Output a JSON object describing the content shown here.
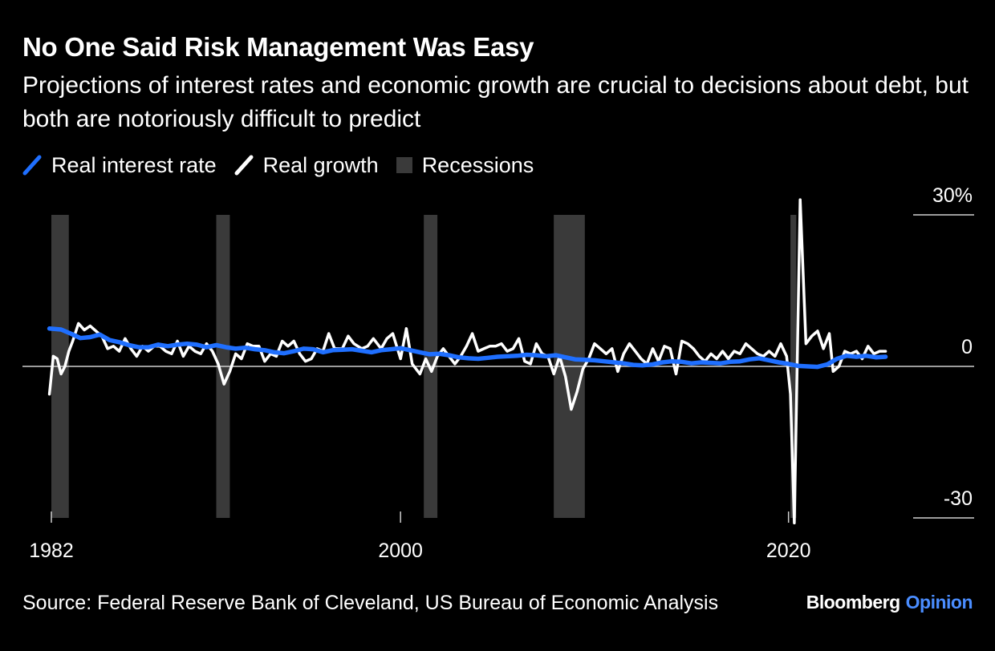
{
  "title": "No One Said Risk Management Was Easy",
  "subtitle": "Projections of interest rates and economic growth are crucial to decisions about debt, but both are notoriously difficult to predict",
  "legend": [
    {
      "label": "Real interest rate",
      "color": "#1f6fff",
      "icon": "slash-line-icon"
    },
    {
      "label": "Real growth",
      "color": "#ffffff",
      "icon": "slash-line-icon"
    },
    {
      "label": "Recessions",
      "color": "#3a3a3a",
      "icon": "square-icon"
    }
  ],
  "source": "Source: Federal Reserve Bank of Cleveland, US Bureau of Economic Analysis",
  "brand": {
    "name": "Bloomberg",
    "section": "Opinion"
  },
  "colors": {
    "background": "#000000",
    "interest": "#1f6fff",
    "growth": "#ffffff",
    "recession": "#3a3a3a"
  },
  "chart_data": {
    "type": "line",
    "xlim": [
      1982,
      2027.5
    ],
    "ylim": [
      -30,
      30
    ],
    "x_ticks": [
      {
        "value": 1982,
        "label": "1982"
      },
      {
        "value": 2000,
        "label": "2000"
      },
      {
        "value": 2020,
        "label": "2020"
      }
    ],
    "y_ticks": [
      {
        "value": 30,
        "label": "30%"
      },
      {
        "value": 0,
        "label": "0"
      },
      {
        "value": -30,
        "label": "-30"
      }
    ],
    "recessions": [
      [
        1982.0,
        1982.9
      ],
      [
        1990.5,
        1991.2
      ],
      [
        2001.2,
        2001.9
      ],
      [
        2007.9,
        2009.5
      ],
      [
        2020.1,
        2020.4
      ]
    ],
    "series": [
      {
        "name": "Real interest rate",
        "color": "#1f6fff",
        "points": [
          [
            1981.9,
            7.5
          ],
          [
            1982.5,
            7.3
          ],
          [
            1983,
            6.5
          ],
          [
            1983.5,
            5.6
          ],
          [
            1984,
            5.8
          ],
          [
            1984.5,
            6.3
          ],
          [
            1985,
            5.2
          ],
          [
            1985.5,
            4.8
          ],
          [
            1986,
            4.2
          ],
          [
            1986.5,
            3.8
          ],
          [
            1987,
            3.8
          ],
          [
            1987.5,
            4.3
          ],
          [
            1988,
            4.0
          ],
          [
            1988.5,
            4.3
          ],
          [
            1989,
            4.5
          ],
          [
            1989.5,
            4.3
          ],
          [
            1990,
            3.8
          ],
          [
            1990.5,
            4.2
          ],
          [
            1991,
            3.8
          ],
          [
            1991.5,
            3.5
          ],
          [
            1992,
            3.7
          ],
          [
            1992.5,
            3.4
          ],
          [
            1993,
            3.2
          ],
          [
            1993.5,
            2.8
          ],
          [
            1994,
            2.6
          ],
          [
            1994.5,
            3.0
          ],
          [
            1995,
            3.5
          ],
          [
            1995.5,
            3.4
          ],
          [
            1996,
            2.8
          ],
          [
            1996.5,
            3.2
          ],
          [
            1997,
            3.3
          ],
          [
            1997.5,
            3.4
          ],
          [
            1998,
            3.1
          ],
          [
            1998.5,
            2.8
          ],
          [
            1999,
            3.2
          ],
          [
            1999.5,
            3.4
          ],
          [
            2000,
            3.6
          ],
          [
            2000.5,
            3.2
          ],
          [
            2001,
            2.8
          ],
          [
            2001.5,
            2.4
          ],
          [
            2002,
            2.5
          ],
          [
            2002.5,
            2.2
          ],
          [
            2003,
            1.8
          ],
          [
            2003.5,
            1.6
          ],
          [
            2004,
            1.5
          ],
          [
            2004.5,
            1.7
          ],
          [
            2005,
            1.9
          ],
          [
            2005.5,
            2.0
          ],
          [
            2006,
            2.1
          ],
          [
            2006.5,
            2.3
          ],
          [
            2007,
            2.2
          ],
          [
            2007.5,
            2.0
          ],
          [
            2008,
            2.2
          ],
          [
            2008.5,
            1.8
          ],
          [
            2009,
            1.4
          ],
          [
            2009.5,
            1.3
          ],
          [
            2010,
            1.2
          ],
          [
            2010.5,
            1.0
          ],
          [
            2011,
            0.8
          ],
          [
            2011.5,
            0.6
          ],
          [
            2012,
            0.3
          ],
          [
            2012.5,
            0.2
          ],
          [
            2013,
            0.4
          ],
          [
            2013.5,
            0.8
          ],
          [
            2014,
            1.0
          ],
          [
            2014.5,
            0.9
          ],
          [
            2015,
            0.6
          ],
          [
            2015.5,
            0.8
          ],
          [
            2016,
            0.7
          ],
          [
            2016.5,
            0.6
          ],
          [
            2017,
            0.9
          ],
          [
            2017.5,
            1.0
          ],
          [
            2018,
            1.4
          ],
          [
            2018.5,
            1.6
          ],
          [
            2019,
            1.2
          ],
          [
            2019.5,
            0.8
          ],
          [
            2020,
            0.5
          ],
          [
            2020.5,
            0.1
          ],
          [
            2021,
            0.0
          ],
          [
            2021.5,
            -0.1
          ],
          [
            2022,
            0.4
          ],
          [
            2022.5,
            1.5
          ],
          [
            2023,
            2.1
          ],
          [
            2023.5,
            1.9
          ],
          [
            2024,
            2.1
          ],
          [
            2024.5,
            1.8
          ],
          [
            2025,
            1.9
          ]
        ]
      },
      {
        "name": "Real growth",
        "color": "#ffffff",
        "points": [
          [
            1981.9,
            -5.5
          ],
          [
            1982.1,
            2.0
          ],
          [
            1982.3,
            1.5
          ],
          [
            1982.5,
            -1.5
          ],
          [
            1982.7,
            0.0
          ],
          [
            1982.9,
            3.0
          ],
          [
            1983.1,
            5.0
          ],
          [
            1983.4,
            8.5
          ],
          [
            1983.7,
            7.2
          ],
          [
            1984,
            8.0
          ],
          [
            1984.3,
            7.0
          ],
          [
            1984.6,
            6.0
          ],
          [
            1984.9,
            3.5
          ],
          [
            1985.2,
            4.0
          ],
          [
            1985.5,
            3.0
          ],
          [
            1985.8,
            5.5
          ],
          [
            1986.1,
            3.5
          ],
          [
            1986.4,
            2.0
          ],
          [
            1986.7,
            4.0
          ],
          [
            1987,
            3.0
          ],
          [
            1987.3,
            4.0
          ],
          [
            1987.6,
            4.0
          ],
          [
            1987.9,
            3.0
          ],
          [
            1988.2,
            2.5
          ],
          [
            1988.5,
            5.0
          ],
          [
            1988.8,
            2.0
          ],
          [
            1989.1,
            4.0
          ],
          [
            1989.4,
            3.0
          ],
          [
            1989.7,
            2.5
          ],
          [
            1990,
            4.5
          ],
          [
            1990.3,
            3.0
          ],
          [
            1990.6,
            0.5
          ],
          [
            1990.9,
            -3.5
          ],
          [
            1991.2,
            -1.0
          ],
          [
            1991.5,
            2.5
          ],
          [
            1991.8,
            1.5
          ],
          [
            1992.1,
            4.5
          ],
          [
            1992.4,
            4.0
          ],
          [
            1992.7,
            4.0
          ],
          [
            1993,
            1.0
          ],
          [
            1993.3,
            2.5
          ],
          [
            1993.6,
            2.0
          ],
          [
            1993.9,
            5.0
          ],
          [
            1994.2,
            4.0
          ],
          [
            1994.5,
            5.0
          ],
          [
            1994.8,
            2.5
          ],
          [
            1995.1,
            1.0
          ],
          [
            1995.4,
            1.5
          ],
          [
            1995.7,
            3.5
          ],
          [
            1996,
            3.0
          ],
          [
            1996.3,
            6.5
          ],
          [
            1996.6,
            3.5
          ],
          [
            1997,
            3.5
          ],
          [
            1997.3,
            6.0
          ],
          [
            1997.6,
            4.5
          ],
          [
            1998,
            3.5
          ],
          [
            1998.3,
            4.0
          ],
          [
            1998.6,
            5.5
          ],
          [
            1999,
            3.5
          ],
          [
            1999.3,
            5.5
          ],
          [
            1999.6,
            6.5
          ],
          [
            2000,
            1.5
          ],
          [
            2000.3,
            7.5
          ],
          [
            2000.6,
            0.5
          ],
          [
            2001,
            -1.5
          ],
          [
            2001.3,
            1.5
          ],
          [
            2001.6,
            -1.0
          ],
          [
            2001.9,
            2.0
          ],
          [
            2002.2,
            3.5
          ],
          [
            2002.5,
            2.0
          ],
          [
            2002.8,
            0.5
          ],
          [
            2003.1,
            2.0
          ],
          [
            2003.4,
            4.0
          ],
          [
            2003.7,
            6.5
          ],
          [
            2004,
            3.0
          ],
          [
            2004.3,
            3.5
          ],
          [
            2004.6,
            4.0
          ],
          [
            2004.9,
            4.0
          ],
          [
            2005.2,
            4.5
          ],
          [
            2005.5,
            3.0
          ],
          [
            2005.8,
            3.5
          ],
          [
            2006.1,
            5.5
          ],
          [
            2006.4,
            1.0
          ],
          [
            2006.7,
            0.5
          ],
          [
            2007,
            4.5
          ],
          [
            2007.3,
            2.5
          ],
          [
            2007.6,
            2.0
          ],
          [
            2007.9,
            -1.5
          ],
          [
            2008.2,
            2.0
          ],
          [
            2008.5,
            -2.0
          ],
          [
            2008.8,
            -8.5
          ],
          [
            2009.1,
            -5.0
          ],
          [
            2009.4,
            -0.5
          ],
          [
            2009.7,
            1.5
          ],
          [
            2010,
            4.5
          ],
          [
            2010.3,
            3.5
          ],
          [
            2010.6,
            2.5
          ],
          [
            2010.9,
            3.5
          ],
          [
            2011.2,
            -1.0
          ],
          [
            2011.5,
            2.5
          ],
          [
            2011.8,
            4.5
          ],
          [
            2012.1,
            3.0
          ],
          [
            2012.4,
            1.5
          ],
          [
            2012.7,
            0.5
          ],
          [
            2013,
            3.5
          ],
          [
            2013.3,
            1.0
          ],
          [
            2013.6,
            4.0
          ],
          [
            2013.9,
            3.5
          ],
          [
            2014.2,
            -1.5
          ],
          [
            2014.5,
            5.0
          ],
          [
            2014.8,
            4.5
          ],
          [
            2015.1,
            3.5
          ],
          [
            2015.4,
            2.0
          ],
          [
            2015.7,
            1.0
          ],
          [
            2016,
            2.5
          ],
          [
            2016.3,
            1.5
          ],
          [
            2016.6,
            3.0
          ],
          [
            2016.9,
            1.5
          ],
          [
            2017.2,
            3.0
          ],
          [
            2017.5,
            2.5
          ],
          [
            2017.8,
            4.5
          ],
          [
            2018.1,
            3.5
          ],
          [
            2018.4,
            2.5
          ],
          [
            2018.7,
            2.0
          ],
          [
            2019,
            3.0
          ],
          [
            2019.3,
            2.0
          ],
          [
            2019.6,
            4.5
          ],
          [
            2019.9,
            2.0
          ],
          [
            2020.1,
            -5.5
          ],
          [
            2020.3,
            -31.0
          ],
          [
            2020.6,
            33.0
          ],
          [
            2020.9,
            4.5
          ],
          [
            2021.2,
            6.0
          ],
          [
            2021.5,
            7.0
          ],
          [
            2021.8,
            3.5
          ],
          [
            2022.1,
            6.5
          ],
          [
            2022.3,
            -1.0
          ],
          [
            2022.6,
            0.0
          ],
          [
            2022.9,
            3.0
          ],
          [
            2023.2,
            2.5
          ],
          [
            2023.5,
            3.0
          ],
          [
            2023.8,
            1.5
          ],
          [
            2024.1,
            4.0
          ],
          [
            2024.4,
            2.5
          ],
          [
            2024.7,
            3.0
          ],
          [
            2025,
            3.0
          ]
        ]
      }
    ]
  }
}
